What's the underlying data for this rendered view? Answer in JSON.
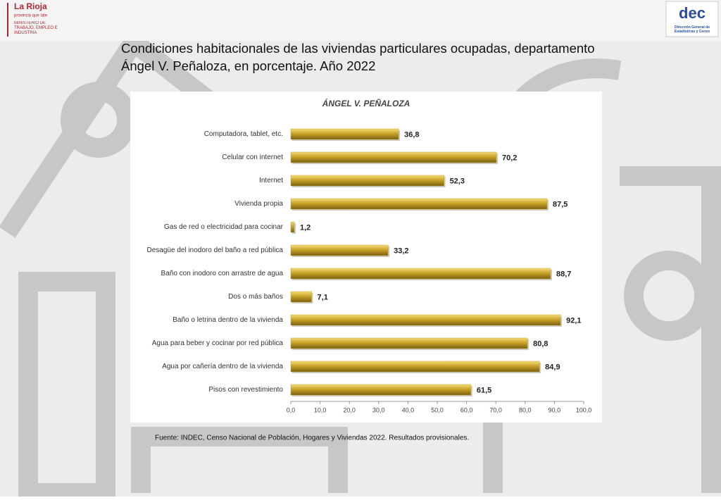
{
  "header": {
    "logo_left": "La Rioja",
    "logo_left_tagline": "provincia que late",
    "ministry": "MINISTERIO DE TRABAJO, EMPLEO E INDUSTRIA",
    "logo_right": "dec",
    "logo_right_caption": "Dirección General de Estadísticas y Censo"
  },
  "slide": {
    "title_line1": "Condiciones habitacionales de las viviendas particulares ocupadas, departamento",
    "title_line2": "Ángel V. Peñaloza, en porcentaje. Año 2022",
    "source": "Fuente: INDEC, Censo Nacional de Población, Hogares y Viviendas 2022. Resultados provisionales."
  },
  "chart_data": {
    "type": "hbar",
    "title": "ÁNGEL V. PEÑALOZA",
    "categories": [
      "Computadora, tablet, etc.",
      "Celular con internet",
      "Internet",
      "Vivienda propia",
      "Gas de red o electricidad para cocinar",
      "Desagüe del inodoro del baño a red pública",
      "Baño con inodoro con arrastre de agua",
      "Dos o más baños",
      "Baño o letrina dentro de la vivienda",
      "Agua para beber y cocinar por red pública",
      "Agua por cañería dentro de la vivienda",
      "Pisos con revestimiento"
    ],
    "values": [
      36.8,
      70.2,
      52.3,
      87.5,
      1.2,
      33.2,
      88.7,
      7.1,
      92.1,
      80.8,
      84.9,
      61.5
    ],
    "value_labels": [
      "36,8",
      "70,2",
      "52,3",
      "87,5",
      "1,2",
      "33,2",
      "88,7",
      "7,1",
      "92,1",
      "80,8",
      "84,9",
      "61,5"
    ],
    "color": "#c9a227",
    "xlim": [
      0,
      100
    ],
    "xticks": [
      {
        "value": 0,
        "label": "0,0"
      },
      {
        "value": 10,
        "label": "10,0"
      },
      {
        "value": 20,
        "label": "20,0"
      },
      {
        "value": 30,
        "label": "30,0"
      },
      {
        "value": 40,
        "label": "40,0"
      },
      {
        "value": 50,
        "label": "50,0"
      },
      {
        "value": 60,
        "label": "60,0"
      },
      {
        "value": 70,
        "label": "70,0"
      },
      {
        "value": 80,
        "label": "80,0"
      },
      {
        "value": 90,
        "label": "90,0"
      },
      {
        "value": 100,
        "label": "100,0"
      }
    ],
    "grid": false
  }
}
